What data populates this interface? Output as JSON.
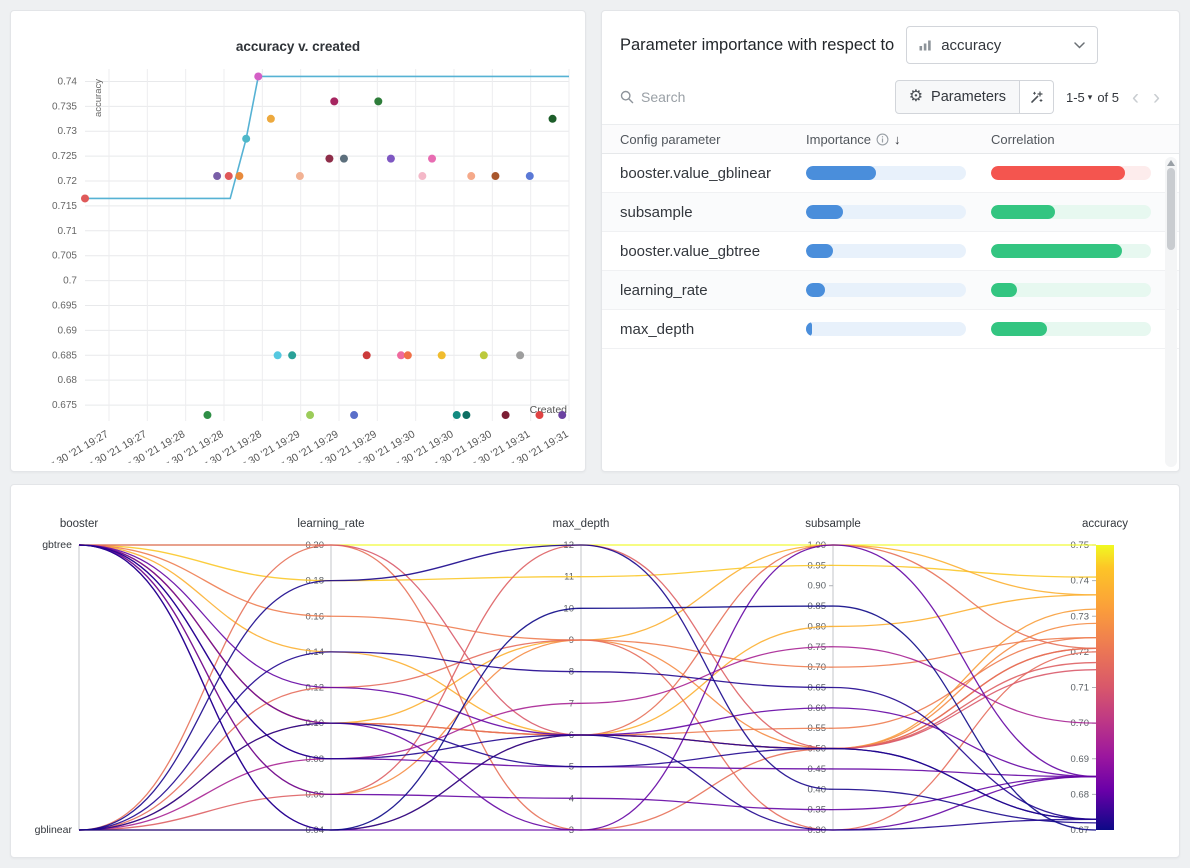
{
  "importance_panel": {
    "title": "Parameter importance with respect to",
    "metric_dropdown": {
      "value": "accuracy"
    },
    "search_placeholder": "Search",
    "parameters_button_label": "Parameters",
    "pagination": {
      "range": "1-5",
      "of": "of 5"
    },
    "columns": [
      "Config parameter",
      "Importance",
      "Correlation"
    ],
    "rows": [
      {
        "name": "booster.value_gblinear",
        "importance": 0.44,
        "correlation": -0.84
      },
      {
        "name": "subsample",
        "importance": 0.23,
        "correlation": 0.4
      },
      {
        "name": "booster.value_gbtree",
        "importance": 0.17,
        "correlation": 0.82
      },
      {
        "name": "learning_rate",
        "importance": 0.12,
        "correlation": 0.16
      },
      {
        "name": "max_depth",
        "importance": 0.04,
        "correlation": 0.35
      }
    ],
    "colors": {
      "importance": "#4a8edb",
      "importance_track": "#e8f1fb",
      "positive": "#33c581",
      "positive_track": "#e7f8f0",
      "negative": "#f4554f",
      "negative_track": "#fdecec"
    }
  },
  "chart_data": [
    {
      "type": "scatter",
      "title": "accuracy v. created",
      "xlabel": "Created",
      "ylabel": "accuracy",
      "ylim": [
        0.6718,
        0.7425
      ],
      "y_ticks": [
        0.675,
        0.68,
        0.685,
        0.69,
        0.695,
        0.7,
        0.705,
        0.71,
        0.715,
        0.72,
        0.725,
        0.73,
        0.735,
        0.74
      ],
      "x_tick_labels": [
        "Apr 30 '21 19:27",
        "Apr 30 '21 19:27",
        "Apr 30 '21 19:28",
        "Apr 30 '21 19:28",
        "Apr 30 '21 19:28",
        "Apr 30 '21 19:29",
        "Apr 30 '21 19:29",
        "Apr 30 '21 19:29",
        "Apr 30 '21 19:30",
        "Apr 30 '21 19:30",
        "Apr 30 '21 19:30",
        "Apr 30 '21 19:31",
        "Apr 30 '21 19:31"
      ],
      "max_line": {
        "color": "#56b2d4",
        "points": [
          [
            0.0,
            0.7165
          ],
          [
            0.3,
            0.7165
          ],
          [
            0.333,
            0.7285
          ],
          [
            0.358,
            0.741
          ],
          [
            1.0,
            0.741
          ]
        ]
      },
      "points": [
        {
          "x": 0.0,
          "y": 0.7165,
          "color": "#df5a5a"
        },
        {
          "x": 0.253,
          "y": 0.673,
          "color": "#2f8f46"
        },
        {
          "x": 0.273,
          "y": 0.721,
          "color": "#7a5fa8"
        },
        {
          "x": 0.297,
          "y": 0.721,
          "color": "#e05858"
        },
        {
          "x": 0.319,
          "y": 0.721,
          "color": "#e88a3c"
        },
        {
          "x": 0.333,
          "y": 0.7285,
          "color": "#4fb8c9"
        },
        {
          "x": 0.358,
          "y": 0.741,
          "color": "#d45fc6"
        },
        {
          "x": 0.384,
          "y": 0.7325,
          "color": "#eda93e"
        },
        {
          "x": 0.398,
          "y": 0.685,
          "color": "#55c8e0"
        },
        {
          "x": 0.428,
          "y": 0.685,
          "color": "#2aa198"
        },
        {
          "x": 0.444,
          "y": 0.721,
          "color": "#f2b294"
        },
        {
          "x": 0.465,
          "y": 0.673,
          "color": "#9ccc5a"
        },
        {
          "x": 0.505,
          "y": 0.7245,
          "color": "#8e2d49"
        },
        {
          "x": 0.515,
          "y": 0.736,
          "color": "#a62560"
        },
        {
          "x": 0.535,
          "y": 0.7245,
          "color": "#5c6f7c"
        },
        {
          "x": 0.556,
          "y": 0.673,
          "color": "#5a6fc9"
        },
        {
          "x": 0.582,
          "y": 0.685,
          "color": "#cc3a3a"
        },
        {
          "x": 0.606,
          "y": 0.736,
          "color": "#2e7d3a"
        },
        {
          "x": 0.632,
          "y": 0.7245,
          "color": "#7e57c2"
        },
        {
          "x": 0.653,
          "y": 0.685,
          "color": "#ef6a9e"
        },
        {
          "x": 0.667,
          "y": 0.685,
          "color": "#f07048"
        },
        {
          "x": 0.697,
          "y": 0.721,
          "color": "#f4b8c8"
        },
        {
          "x": 0.717,
          "y": 0.7245,
          "color": "#e86cb2"
        },
        {
          "x": 0.737,
          "y": 0.685,
          "color": "#f0bc2e"
        },
        {
          "x": 0.768,
          "y": 0.673,
          "color": "#128a80"
        },
        {
          "x": 0.788,
          "y": 0.673,
          "color": "#0d6e62"
        },
        {
          "x": 0.798,
          "y": 0.721,
          "color": "#f5a98a"
        },
        {
          "x": 0.824,
          "y": 0.685,
          "color": "#bcc93c"
        },
        {
          "x": 0.848,
          "y": 0.721,
          "color": "#a8562c"
        },
        {
          "x": 0.869,
          "y": 0.673,
          "color": "#7c1f35"
        },
        {
          "x": 0.899,
          "y": 0.685,
          "color": "#9e9e9e"
        },
        {
          "x": 0.919,
          "y": 0.721,
          "color": "#5b79d6"
        },
        {
          "x": 0.939,
          "y": 0.673,
          "color": "#e04343"
        },
        {
          "x": 0.966,
          "y": 0.7325,
          "color": "#1d5e2a"
        },
        {
          "x": 0.986,
          "y": 0.673,
          "color": "#6b42a1"
        }
      ]
    },
    {
      "type": "parallel-coordinates",
      "axes": [
        {
          "name": "booster",
          "type": "categorical",
          "categories": [
            "gbtree",
            "gblinear"
          ]
        },
        {
          "name": "learning_rate",
          "type": "linear",
          "min": 0.04,
          "max": 0.2,
          "format": "fixed2",
          "ticks": [
            0.04,
            0.06,
            0.08,
            0.1,
            0.12,
            0.14,
            0.16,
            0.18,
            0.2
          ]
        },
        {
          "name": "max_depth",
          "type": "linear",
          "min": 3,
          "max": 12,
          "format": "int",
          "ticks": [
            3,
            4,
            5,
            6,
            7,
            8,
            9,
            10,
            11,
            12
          ]
        },
        {
          "name": "subsample",
          "type": "linear",
          "min": 0.3,
          "max": 1.0,
          "format": "fixed2",
          "ticks": [
            0.3,
            0.35,
            0.4,
            0.45,
            0.5,
            0.55,
            0.6,
            0.65,
            0.7,
            0.75,
            0.8,
            0.85,
            0.9,
            0.95,
            1.0
          ]
        },
        {
          "name": "accuracy",
          "type": "color",
          "min": 0.67,
          "max": 0.75,
          "format": "fixed2",
          "ticks": [
            0.67,
            0.68,
            0.69,
            0.7,
            0.71,
            0.72,
            0.73,
            0.74,
            0.75
          ]
        }
      ],
      "color_domain": [
        0.67,
        0.75
      ],
      "colorbar_stops": [
        [
          "0%",
          "#f0f921"
        ],
        [
          "8%",
          "#fdc527"
        ],
        [
          "22%",
          "#fb9f3a"
        ],
        [
          "36%",
          "#ed7953"
        ],
        [
          "50%",
          "#d8576b"
        ],
        [
          "62%",
          "#bd3786"
        ],
        [
          "74%",
          "#9c179e"
        ],
        [
          "86%",
          "#6a00a8"
        ],
        [
          "100%",
          "#0d0887"
        ]
      ],
      "runs": [
        {
          "booster": "gbtree",
          "learning_rate": 0.2,
          "max_depth": 12,
          "subsample": 1.0,
          "accuracy": 0.75
        },
        {
          "booster": "gbtree",
          "learning_rate": 0.18,
          "max_depth": 11,
          "subsample": 0.95,
          "accuracy": 0.741
        },
        {
          "booster": "gbtree",
          "learning_rate": 0.1,
          "max_depth": 9,
          "subsample": 1.0,
          "accuracy": 0.736
        },
        {
          "booster": "gbtree",
          "learning_rate": 0.14,
          "max_depth": 6,
          "subsample": 0.8,
          "accuracy": 0.736
        },
        {
          "booster": "gbtree",
          "learning_rate": 0.1,
          "max_depth": 6,
          "subsample": 0.5,
          "accuracy": 0.732
        },
        {
          "booster": "gbtree",
          "learning_rate": 0.06,
          "max_depth": 9,
          "subsample": 0.5,
          "accuracy": 0.728
        },
        {
          "booster": "gbtree",
          "learning_rate": 0.1,
          "max_depth": 6,
          "subsample": 0.55,
          "accuracy": 0.724
        },
        {
          "booster": "gbtree",
          "learning_rate": 0.16,
          "max_depth": 9,
          "subsample": 0.7,
          "accuracy": 0.724
        },
        {
          "booster": "gblinear",
          "learning_rate": 0.1,
          "max_depth": 6,
          "subsample": 0.5,
          "accuracy": 0.721
        },
        {
          "booster": "gblinear",
          "learning_rate": 0.2,
          "max_depth": 3,
          "subsample": 0.5,
          "accuracy": 0.721
        },
        {
          "booster": "gblinear",
          "learning_rate": 0.04,
          "max_depth": 6,
          "subsample": 1.0,
          "accuracy": 0.721
        },
        {
          "booster": "gblinear",
          "learning_rate": 0.12,
          "max_depth": 9,
          "subsample": 0.3,
          "accuracy": 0.72
        },
        {
          "booster": "gblinear",
          "learning_rate": 0.06,
          "max_depth": 12,
          "subsample": 0.5,
          "accuracy": 0.717
        },
        {
          "booster": "gbtree",
          "learning_rate": 0.2,
          "max_depth": 6,
          "subsample": 0.5,
          "accuracy": 0.715
        },
        {
          "booster": "gblinear",
          "learning_rate": 0.08,
          "max_depth": 7,
          "subsample": 0.75,
          "accuracy": 0.7
        },
        {
          "booster": "gbtree",
          "learning_rate": 0.04,
          "max_depth": 3,
          "subsample": 0.3,
          "accuracy": 0.685
        },
        {
          "booster": "gbtree",
          "learning_rate": 0.08,
          "max_depth": 5,
          "subsample": 0.45,
          "accuracy": 0.685
        },
        {
          "booster": "gbtree",
          "learning_rate": 0.12,
          "max_depth": 6,
          "subsample": 0.6,
          "accuracy": 0.685
        },
        {
          "booster": "gbtree",
          "learning_rate": 0.06,
          "max_depth": 4,
          "subsample": 0.35,
          "accuracy": 0.685
        },
        {
          "booster": "gbtree",
          "learning_rate": 0.1,
          "max_depth": 3,
          "subsample": 1.0,
          "accuracy": 0.685
        },
        {
          "booster": "gbtree",
          "learning_rate": 0.04,
          "max_depth": 6,
          "subsample": 0.5,
          "accuracy": 0.673
        },
        {
          "booster": "gbtree",
          "learning_rate": 0.08,
          "max_depth": 6,
          "subsample": 0.3,
          "accuracy": 0.673
        },
        {
          "booster": "gblinear",
          "learning_rate": 0.1,
          "max_depth": 5,
          "subsample": 0.5,
          "accuracy": 0.673
        },
        {
          "booster": "gblinear",
          "learning_rate": 0.14,
          "max_depth": 8,
          "subsample": 0.65,
          "accuracy": 0.673
        },
        {
          "booster": "gblinear",
          "learning_rate": 0.18,
          "max_depth": 12,
          "subsample": 0.4,
          "accuracy": 0.672
        },
        {
          "booster": "gblinear",
          "learning_rate": 0.04,
          "max_depth": 10,
          "subsample": 0.85,
          "accuracy": 0.67
        }
      ]
    }
  ]
}
